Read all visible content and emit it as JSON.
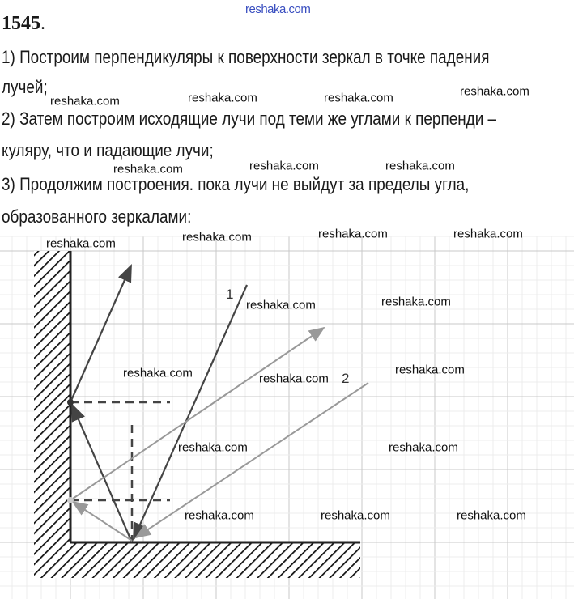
{
  "header_watermark": "reshaka.com",
  "problem_number": "1545",
  "problem_number_suffix": ".",
  "lines": [
    "1) Построим перпендикуляры к поверхности зеркал в точке падения",
    "лучей;",
    "2) Затем построим исходящие лучи под теми же углами к перпенди –",
    "куляру, что и падающие лучи;",
    "3) Продолжим построения. пока лучи не выйдут за пределы угла,",
    "образованного зеркалами:"
  ],
  "diagram": {
    "ray_labels": [
      "1",
      "2"
    ],
    "colors": {
      "ray_1": "#444444",
      "ray_2": "#8c8c8c",
      "mirror": "#222222",
      "grid": "#d4d4d4"
    }
  },
  "watermarks": [
    "reshaka.com",
    "reshaka.com",
    "reshaka.com",
    "reshaka.com",
    "reshaka.com",
    "reshaka.com",
    "reshaka.com",
    "reshaka.com",
    "reshaka.com",
    "reshaka.com",
    "reshaka.com",
    "reshaka.com",
    "reshaka.com",
    "reshaka.com",
    "reshaka.com",
    "reshaka.com",
    "reshaka.com",
    "reshaka.com",
    "reshaka.com",
    "reshaka.com",
    "reshaka.com"
  ]
}
